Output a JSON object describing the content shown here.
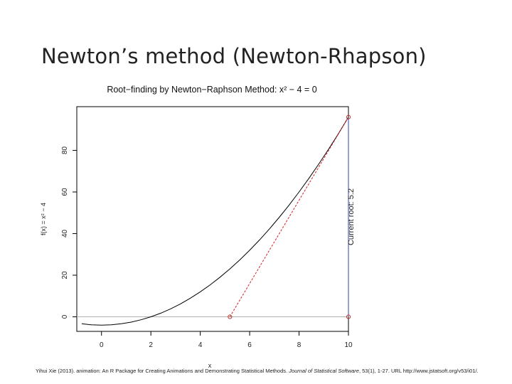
{
  "slide": {
    "title": "Newton’s method (Newton-Rhapson)"
  },
  "citation": {
    "before": "Yihui Xie (2013). animation: An R Package for Creating Animations and Demonstrating Statistical Methods. ",
    "journal": "Journal of Statistical Software",
    "after": ", 53(1), 1-27. URL http://www.jstatsoft.org/v53/i01/."
  },
  "chart_data": {
    "type": "line",
    "title": "Root−finding by Newton−Raphson Method: x² − 4 = 0",
    "xlabel": "x",
    "ylabel": "f(x) = x² − 4",
    "right_label": "Current root: 5.2",
    "xlim": [
      -1.0,
      10.0
    ],
    "ylim": [
      -7,
      101
    ],
    "x_ticks": [
      0,
      2,
      4,
      6,
      8,
      10
    ],
    "y_ticks": [
      0,
      20,
      40,
      60,
      80
    ],
    "grid": false,
    "series": [
      {
        "style": "solid",
        "color": "#000000",
        "x": [
          -0.8,
          -0.4,
          0,
          0.4,
          0.8,
          1.2,
          1.6,
          2.0,
          2.4,
          2.8,
          3.2,
          3.6,
          4.0,
          4.4,
          4.8,
          5.2,
          5.6,
          6.0,
          6.4,
          6.8,
          7.2,
          7.6,
          8.0,
          8.4,
          8.8,
          9.2,
          9.6,
          10.0
        ],
        "y": [
          -3.36,
          -3.84,
          -4.0,
          -3.84,
          -3.36,
          -2.56,
          -1.44,
          0,
          1.76,
          3.84,
          6.24,
          8.96,
          12.0,
          15.36,
          19.04,
          23.04,
          27.36,
          32.0,
          36.96,
          42.24,
          47.84,
          53.76,
          60.0,
          66.56,
          73.44,
          80.64,
          88.16,
          96.0
        ]
      },
      {
        "style": "dashed",
        "color": "#d62020",
        "x": [
          5.2,
          10.0
        ],
        "y": [
          0,
          96.0
        ]
      },
      {
        "style": "solid",
        "color": "#2b3fb5",
        "x": [
          10.0,
          10.0
        ],
        "y": [
          0,
          96.0
        ]
      }
    ],
    "reference_line": {
      "y": 0,
      "color": "#b0b0b0"
    },
    "points": [
      {
        "x": 10.0,
        "y": 96.0,
        "color": "#c0392b"
      },
      {
        "x": 10.0,
        "y": 0,
        "color": "#c0392b"
      },
      {
        "x": 5.2,
        "y": 0,
        "color": "#c0392b"
      }
    ]
  }
}
